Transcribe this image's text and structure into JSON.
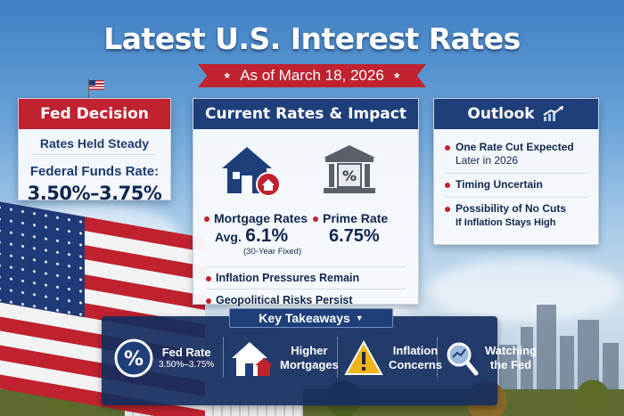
{
  "header": {
    "title": "Latest U.S. Interest Rates",
    "date": "As of March 18, 2026"
  },
  "fed_decision": {
    "heading": "Fed Decision",
    "status": "Rates Held Steady",
    "rate_label": "Federal Funds Rate:",
    "rate_value": "3.50%–3.75%"
  },
  "current_rates": {
    "heading": "Current Rates & Impact",
    "mortgage_label": "Mortgage Rates",
    "mortgage_avg": "Avg.",
    "mortgage_value": "6.1%",
    "mortgage_note": "(30-Year Fixed)",
    "prime_label": "Prime Rate",
    "prime_value": "6.75%",
    "bullets": [
      "Inflation Pressures Remain",
      "Geopolitical Risks Persist"
    ]
  },
  "outlook": {
    "heading": "Outlook",
    "items": [
      {
        "line1": "One Rate Cut Expected",
        "line2": "Later in 2026"
      },
      {
        "line1": "Timing Uncertain",
        "line2": ""
      },
      {
        "line1": "Possibility of No Cuts",
        "line2": "If Inflation Stays High"
      }
    ]
  },
  "key_takeaways": {
    "heading": "Key Takeaways",
    "items": [
      {
        "icon": "percent-icon",
        "line1": "Fed Rate",
        "line2": "3.50%–3.75%"
      },
      {
        "icon": "house-icon",
        "line1": "Higher",
        "line2": "Mortgages"
      },
      {
        "icon": "warning-icon",
        "line1": "Inflation",
        "line2": "Concerns"
      },
      {
        "icon": "magnifier-icon",
        "line1": "Watching",
        "line2": "the Fed"
      }
    ]
  },
  "colors": {
    "red": "#c0222f",
    "navy": "#1f3f7a",
    "text_navy": "#10264d"
  }
}
